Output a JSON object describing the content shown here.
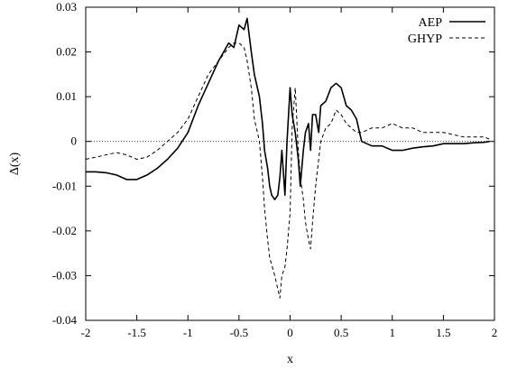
{
  "chart_data": {
    "type": "line",
    "xlabel": "x",
    "ylabel": "Δ(x)",
    "xlim": [
      -2,
      2
    ],
    "ylim": [
      -0.04,
      0.03
    ],
    "x_ticks": [
      -2,
      -1.5,
      -1,
      -0.5,
      0,
      0.5,
      1,
      1.5,
      2
    ],
    "x_tick_labels": [
      "-2",
      "-1.5",
      "-1",
      "-0.5",
      "0",
      "0.5",
      "1",
      "1.5",
      "2"
    ],
    "y_ticks": [
      -0.04,
      -0.03,
      -0.02,
      -0.01,
      0,
      0.01,
      0.02,
      0.03
    ],
    "y_tick_labels": [
      "-0.04",
      "-0.03",
      "-0.02",
      "-0.01",
      "0",
      "0.01",
      "0.02",
      "0.03"
    ],
    "reference_line": {
      "y": 0,
      "style": "dotted"
    },
    "legend_position": "top-right",
    "grid": false,
    "series": [
      {
        "name": "AEP",
        "style": "solid",
        "color": "#000000",
        "x": [
          -2.0,
          -1.9,
          -1.8,
          -1.7,
          -1.6,
          -1.5,
          -1.4,
          -1.3,
          -1.2,
          -1.1,
          -1.0,
          -0.9,
          -0.8,
          -0.7,
          -0.6,
          -0.55,
          -0.5,
          -0.45,
          -0.42,
          -0.38,
          -0.35,
          -0.3,
          -0.27,
          -0.25,
          -0.22,
          -0.2,
          -0.18,
          -0.15,
          -0.12,
          -0.1,
          -0.08,
          -0.05,
          -0.03,
          0.0,
          0.02,
          0.05,
          0.08,
          0.1,
          0.13,
          0.15,
          0.18,
          0.2,
          0.22,
          0.25,
          0.28,
          0.3,
          0.35,
          0.4,
          0.45,
          0.5,
          0.55,
          0.6,
          0.65,
          0.7,
          0.8,
          0.9,
          1.0,
          1.1,
          1.2,
          1.3,
          1.4,
          1.5,
          1.6,
          1.7,
          1.8,
          1.9,
          1.95
        ],
        "y": [
          -0.0068,
          -0.0068,
          -0.007,
          -0.0075,
          -0.0085,
          -0.0085,
          -0.0075,
          -0.006,
          -0.004,
          -0.0015,
          0.002,
          0.008,
          0.013,
          0.018,
          0.022,
          0.021,
          0.026,
          0.025,
          0.0275,
          0.02,
          0.015,
          0.01,
          0.004,
          -0.002,
          -0.006,
          -0.01,
          -0.012,
          -0.013,
          -0.012,
          -0.008,
          -0.002,
          -0.012,
          0.0,
          0.012,
          0.006,
          0.002,
          -0.004,
          -0.01,
          -0.002,
          0.002,
          0.004,
          -0.002,
          0.006,
          0.006,
          0.002,
          0.008,
          0.009,
          0.012,
          0.013,
          0.012,
          0.008,
          0.007,
          0.005,
          0.0,
          -0.001,
          -0.001,
          -0.002,
          -0.002,
          -0.0015,
          -0.0012,
          -0.001,
          -0.0005,
          -0.0005,
          -0.0005,
          -0.0003,
          -0.0002,
          0.0
        ]
      },
      {
        "name": "GHYP",
        "style": "dashed",
        "color": "#000000",
        "x": [
          -2.0,
          -1.9,
          -1.8,
          -1.7,
          -1.6,
          -1.5,
          -1.4,
          -1.3,
          -1.2,
          -1.1,
          -1.0,
          -0.9,
          -0.8,
          -0.7,
          -0.6,
          -0.55,
          -0.5,
          -0.45,
          -0.42,
          -0.38,
          -0.35,
          -0.3,
          -0.27,
          -0.25,
          -0.22,
          -0.2,
          -0.15,
          -0.12,
          -0.1,
          -0.08,
          -0.05,
          -0.03,
          0.0,
          0.02,
          0.05,
          0.08,
          0.1,
          0.13,
          0.15,
          0.18,
          0.2,
          0.22,
          0.25,
          0.28,
          0.3,
          0.35,
          0.4,
          0.45,
          0.5,
          0.55,
          0.6,
          0.65,
          0.7,
          0.8,
          0.9,
          1.0,
          1.1,
          1.2,
          1.3,
          1.4,
          1.5,
          1.6,
          1.7,
          1.8,
          1.9,
          1.95
        ],
        "y": [
          -0.004,
          -0.0035,
          -0.003,
          -0.0025,
          -0.003,
          -0.004,
          -0.0035,
          -0.002,
          0.0,
          0.002,
          0.005,
          0.01,
          0.015,
          0.018,
          0.021,
          0.022,
          0.022,
          0.021,
          0.018,
          0.012,
          0.005,
          0.0,
          -0.008,
          -0.015,
          -0.022,
          -0.026,
          -0.03,
          -0.033,
          -0.035,
          -0.03,
          -0.028,
          -0.024,
          -0.016,
          0.003,
          0.012,
          -0.002,
          -0.008,
          -0.013,
          -0.018,
          -0.022,
          -0.024,
          -0.018,
          -0.01,
          -0.004,
          0.0,
          0.003,
          0.004,
          0.007,
          0.006,
          0.004,
          0.003,
          0.002,
          0.002,
          0.003,
          0.003,
          0.004,
          0.003,
          0.003,
          0.002,
          0.002,
          0.002,
          0.0015,
          0.001,
          0.001,
          0.001,
          0.0005
        ]
      }
    ]
  }
}
